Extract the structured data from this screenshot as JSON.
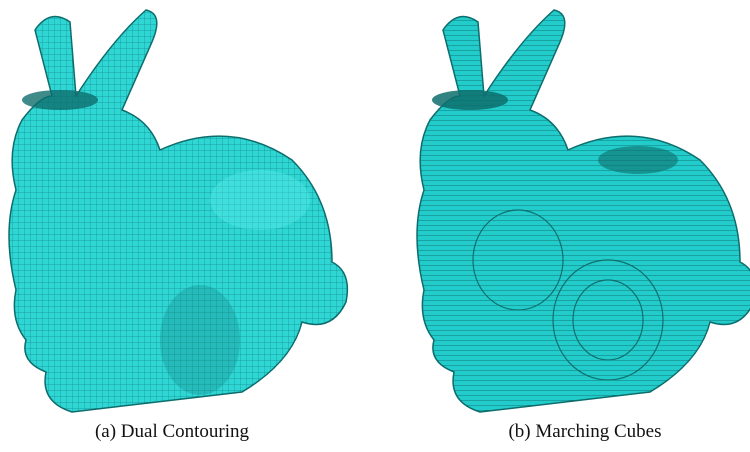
{
  "figures": [
    {
      "caption": "(a) Dual Contouring"
    },
    {
      "caption": "(b) Marching Cubes"
    }
  ]
}
